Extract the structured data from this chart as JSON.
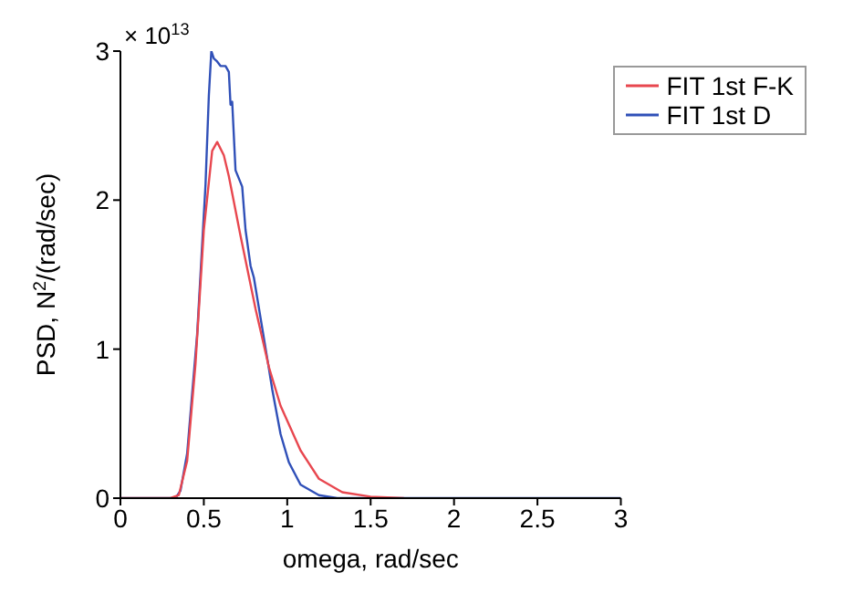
{
  "chart_data": {
    "type": "line",
    "xlabel": "omega, rad/sec",
    "ylabel": "PSD, N$^{2}$/(rad/sec)",
    "annotations": [
      "× 10$^{13}$"
    ],
    "xlim": [
      0,
      3
    ],
    "xticks": [
      0,
      0.5,
      1,
      1.5,
      2,
      2.5,
      3
    ],
    "ylim": [
      0,
      3
    ],
    "yticks": [
      0,
      1,
      2,
      3
    ],
    "grid": false,
    "legend": "top right",
    "marker": "none",
    "line_style": "solid",
    "series": [
      {
        "name": "FIT 1st F-K",
        "color": "#e8474f",
        "x": [
          0,
          0.3,
          0.35,
          0.4,
          0.45,
          0.5,
          0.55,
          0.58,
          0.62,
          0.65,
          0.72,
          0.81,
          0.89,
          0.96,
          1.08,
          1.19,
          1.33,
          1.5,
          1.7
        ],
        "values": [
          0,
          0,
          0.02,
          0.25,
          0.9,
          1.8,
          2.33,
          2.39,
          2.3,
          2.16,
          1.76,
          1.27,
          0.88,
          0.62,
          0.32,
          0.13,
          0.04,
          0.01,
          0
        ]
      },
      {
        "name": "FIT 1st D",
        "color": "#3050b8",
        "x": [
          0,
          0.33,
          0.36,
          0.4,
          0.43,
          0.46,
          0.48,
          0.51,
          0.53,
          0.545,
          0.56,
          0.58,
          0.6,
          0.63,
          0.65,
          0.66,
          0.67,
          0.69,
          0.73,
          0.75,
          0.78,
          0.8,
          0.84,
          0.89,
          0.91,
          0.96,
          1.01,
          1.08,
          1.19,
          1.3,
          3
        ],
        "values": [
          0,
          0,
          0.05,
          0.3,
          0.7,
          1.1,
          1.5,
          2.1,
          2.7,
          3.0,
          2.95,
          2.93,
          2.9,
          2.9,
          2.86,
          2.64,
          2.66,
          2.2,
          2.09,
          1.8,
          1.56,
          1.48,
          1.21,
          0.87,
          0.73,
          0.43,
          0.24,
          0.09,
          0.02,
          0,
          0
        ]
      }
    ]
  }
}
